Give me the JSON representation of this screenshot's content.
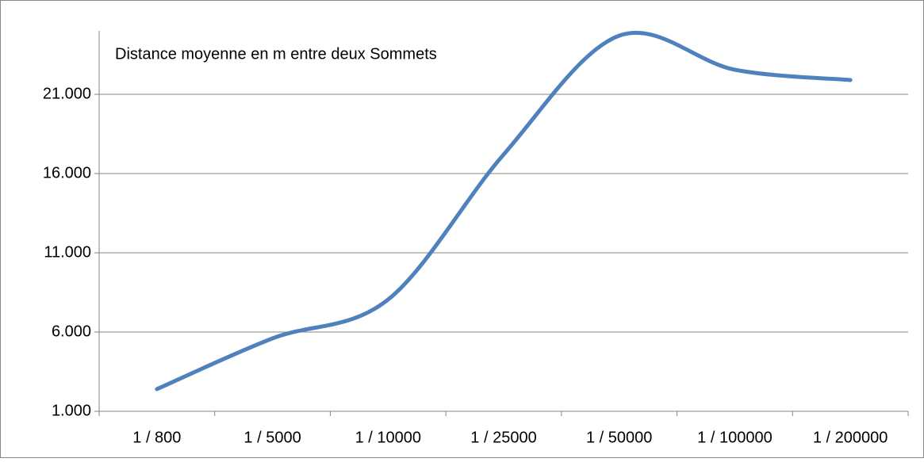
{
  "chart_data": {
    "type": "line",
    "title": "Distance moyenne en m entre deux Sommets",
    "categories": [
      "1 / 800",
      "1 / 5000",
      "1 / 10000",
      "1 / 25000",
      "1 / 50000",
      "1 / 100000",
      "1 / 200000"
    ],
    "series": [
      {
        "name": "Distance moyenne en m entre deux Sommets",
        "color": "#4f81bd",
        "values": [
          2400,
          5600,
          8050,
          17200,
          24700,
          22550,
          21900
        ]
      }
    ],
    "ylim": [
      1000,
      25000
    ],
    "yticks": [
      {
        "value": 1000,
        "label": "1.000"
      },
      {
        "value": 6000,
        "label": "6.000"
      },
      {
        "value": 11000,
        "label": "11.000"
      },
      {
        "value": 16000,
        "label": "16.000"
      },
      {
        "value": 21000,
        "label": "21.000"
      }
    ],
    "grid": true,
    "smooth": true
  }
}
